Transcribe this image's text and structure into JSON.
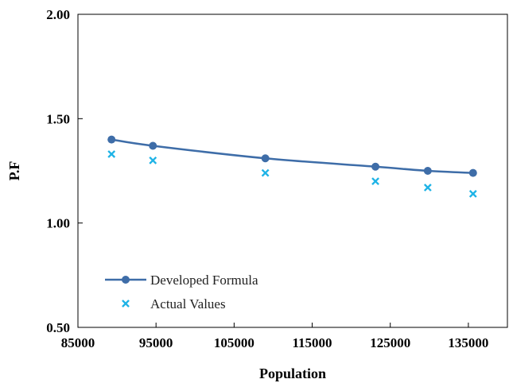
{
  "chart_data": {
    "type": "line",
    "xlabel": "Population",
    "ylabel": "P.F",
    "xlim": [
      85000,
      140000
    ],
    "ylim": [
      0.5,
      2.0
    ],
    "x_ticks": [
      85000,
      95000,
      105000,
      115000,
      125000,
      135000
    ],
    "x_tick_labels": [
      "85000",
      "95000",
      "105000",
      "115000",
      "125000",
      "135000"
    ],
    "y_ticks": [
      0.5,
      1.0,
      1.5,
      2.0
    ],
    "y_tick_labels": [
      "0.50",
      "1.00",
      "1.50",
      "2.00"
    ],
    "grid": false,
    "legend_position": "bottom-left",
    "series": [
      {
        "name": "Developed Formula",
        "style": "line-with-markers",
        "color": "#3e6da8",
        "points": [
          {
            "x": 89300,
            "y": 1.4
          },
          {
            "x": 94600,
            "y": 1.37
          },
          {
            "x": 109000,
            "y": 1.31
          },
          {
            "x": 123100,
            "y": 1.27
          },
          {
            "x": 129800,
            "y": 1.25
          },
          {
            "x": 135600,
            "y": 1.24
          }
        ]
      },
      {
        "name": "Actual Values",
        "style": "markers-only",
        "color": "#1fb3e6",
        "points": [
          {
            "x": 89300,
            "y": 1.33
          },
          {
            "x": 94600,
            "y": 1.3
          },
          {
            "x": 109000,
            "y": 1.24
          },
          {
            "x": 123100,
            "y": 1.2
          },
          {
            "x": 129800,
            "y": 1.17
          },
          {
            "x": 135600,
            "y": 1.14
          }
        ]
      }
    ]
  }
}
